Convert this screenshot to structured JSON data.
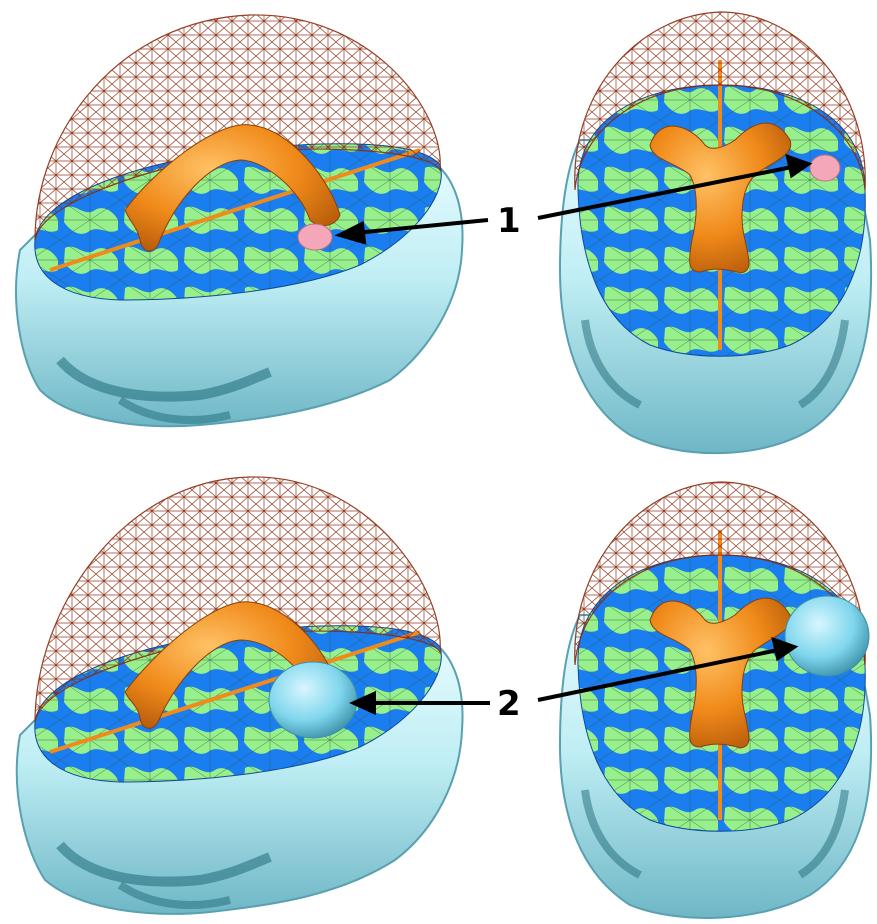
{
  "figure": {
    "labels": {
      "one": "1",
      "two": "2"
    },
    "colors": {
      "skull": "#bfeef4",
      "skull_shadow": "#1f6a78",
      "mesh": "#8b2a0e",
      "brain_blue": "#1a7ef0",
      "brain_green": "#98f08c",
      "ventricle": "#f08a1a",
      "lesion_small": "#f3a7b8",
      "lesion_large": "#7fd6ec"
    },
    "icons": [
      "skull-3d-render",
      "brain-slice",
      "ventricle-mesh",
      "wireframe-dome"
    ]
  }
}
